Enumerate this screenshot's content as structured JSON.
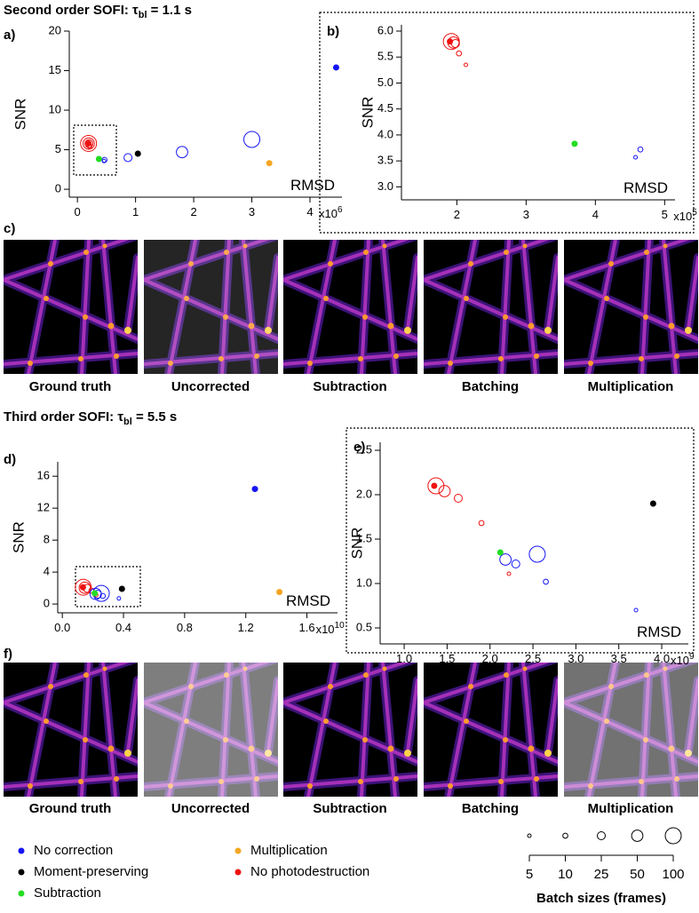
{
  "sections": [
    {
      "title_lead": "Second order SOFI: τ",
      "title_sub": "bl",
      "title_tail": " = 1.1 s",
      "image_panel_label": "c)",
      "images": [
        "Ground truth",
        "Uncorrected",
        "Subtraction",
        "Batching",
        "Multiplication"
      ]
    },
    {
      "title_lead": "Third order SOFI: τ",
      "title_sub": "bl",
      "title_tail": " = 5.5 s",
      "image_panel_label": "f)",
      "images": [
        "Ground truth",
        "Uncorrected",
        "Subtraction",
        "Batching",
        "Multiplication"
      ]
    }
  ],
  "chart_data": [
    {
      "type": "scatter",
      "panel_label": "a)",
      "y_label": "SNR",
      "x_label": "RMSD",
      "x_multiplier": {
        "base": "x10",
        "exponent": "6"
      },
      "xlim": [
        -140000,
        4550000
      ],
      "ylim": [
        -1,
        20
      ],
      "xticks": [
        0,
        {
          "value": 1000000,
          "label": "1"
        },
        {
          "value": 2000000,
          "label": "2"
        },
        {
          "value": 3000000,
          "label": "3"
        },
        {
          "value": 4000000,
          "label": "4"
        }
      ],
      "yticks": [
        0,
        5,
        10,
        15,
        20
      ],
      "series": [
        {
          "name": "No correction",
          "color": "#1515f5",
          "x": [
            4450000
          ],
          "values": [
            15.4
          ]
        },
        {
          "name": "Moment-preserving",
          "color": "#000000",
          "x": [
            1040000
          ],
          "values": [
            4.5
          ]
        },
        {
          "name": "Subtraction",
          "color": "#22dd22",
          "x": [
            370000
          ],
          "values": [
            3.83
          ]
        },
        {
          "name": "Multiplication",
          "color": "#f5a623",
          "x": [
            3300000
          ],
          "values": [
            3.3
          ]
        },
        {
          "name": "No photodestruction",
          "color": "#ee1111",
          "x": [
            190000
          ],
          "values": [
            5.8
          ]
        }
      ],
      "batch_series": [
        {
          "color": "#ee1111",
          "batch_sizes": [
            5,
            10,
            25,
            50,
            100
          ],
          "x": [
            213000,
            203000,
            198000,
            195000,
            192000
          ],
          "values": [
            5.35,
            5.57,
            5.76,
            5.78,
            5.8
          ]
        },
        {
          "color": "#1515f5",
          "batch_sizes": [
            5,
            10,
            25,
            50,
            100
          ],
          "x": [
            458000,
            465000,
            870000,
            1800000,
            3000000
          ],
          "values": [
            3.57,
            3.72,
            4.0,
            4.7,
            6.3
          ]
        }
      ]
    },
    {
      "type": "scatter",
      "panel_label": "b)",
      "y_label": "SNR",
      "x_label": "RMSD",
      "x_multiplier": {
        "base": "x10",
        "exponent": "5"
      },
      "xlim": [
        120000,
        515000
      ],
      "ylim": [
        2.75,
        6.12
      ],
      "xticks": [
        {
          "value": 200000,
          "label": "2"
        },
        {
          "value": 300000,
          "label": "3"
        },
        {
          "value": 400000,
          "label": "4"
        },
        {
          "value": 500000,
          "label": "5"
        }
      ],
      "yticks": [
        {
          "value": 3,
          "label": "3.0"
        },
        3.5,
        {
          "value": 4,
          "label": "4.0"
        },
        4.5,
        {
          "value": 5,
          "label": "5.0"
        },
        5.5,
        {
          "value": 6,
          "label": "6.0"
        }
      ],
      "series": [
        {
          "color": "#22dd22",
          "x": [
            370000
          ],
          "values": [
            3.83
          ]
        },
        {
          "color": "#ee1111",
          "x": [
            190000
          ],
          "values": [
            5.8
          ]
        }
      ],
      "batch_series": [
        {
          "color": "#ee1111",
          "batch_sizes": [
            5,
            10,
            25,
            50,
            100
          ],
          "x": [
            213000,
            203000,
            198000,
            195000,
            192000
          ],
          "values": [
            5.35,
            5.57,
            5.76,
            5.78,
            5.8
          ]
        },
        {
          "color": "#1515f5",
          "batch_sizes": [
            5,
            10
          ],
          "x": [
            458000,
            465000
          ],
          "values": [
            3.57,
            3.72
          ]
        }
      ]
    },
    {
      "type": "scatter",
      "panel_label": "d)",
      "y_label": "SNR",
      "x_label": "RMSD",
      "x_multiplier": {
        "base": "x10",
        "exponent": "10"
      },
      "xlim": [
        -300000000,
        18000000000
      ],
      "ylim": [
        -1.1,
        17.8
      ],
      "xticks": [
        {
          "value": 0,
          "label": "0.0"
        },
        {
          "value": 4000000000,
          "label": "0.4"
        },
        {
          "value": 8000000000,
          "label": "0.8"
        },
        {
          "value": 12000000000,
          "label": "1.2"
        },
        {
          "value": 16000000000,
          "label": "1.6"
        }
      ],
      "yticks": [
        0,
        4,
        8,
        12,
        16
      ],
      "series": [
        {
          "color": "#1515f5",
          "x": [
            12600000000
          ],
          "values": [
            14.4
          ]
        },
        {
          "color": "#000000",
          "x": [
            3900000000
          ],
          "values": [
            1.9
          ]
        },
        {
          "color": "#22dd22",
          "x": [
            2120000000
          ],
          "values": [
            1.35
          ]
        },
        {
          "color": "#f5a623",
          "x": [
            14200000000
          ],
          "values": [
            1.5
          ]
        },
        {
          "color": "#ee1111",
          "x": [
            1350000000
          ],
          "values": [
            2.1
          ]
        }
      ],
      "batch_series": [
        {
          "color": "#ee1111",
          "batch_sizes": [
            5,
            10,
            25,
            50,
            100
          ],
          "x": [
            2220000000,
            1900000000,
            1630000000,
            1470000000,
            1370000000
          ],
          "values": [
            1.11,
            1.68,
            1.96,
            2.04,
            2.1
          ]
        },
        {
          "color": "#1515f5",
          "batch_sizes": [
            5,
            10,
            25,
            50,
            100
          ],
          "x": [
            3700000000,
            2650000000,
            2300000000,
            2180000000,
            2550000000
          ],
          "values": [
            0.7,
            1.02,
            1.22,
            1.27,
            1.33
          ]
        }
      ]
    },
    {
      "type": "scatter",
      "panel_label": "e)",
      "y_label": "SNR",
      "x_label": "RMSD",
      "x_multiplier": {
        "base": "x10",
        "exponent": "9"
      },
      "xlim": [
        720000000,
        4310000000
      ],
      "ylim": [
        0.32,
        2.59
      ],
      "xticks": [
        {
          "value": 1000000000,
          "label": "1.0"
        },
        {
          "value": 1500000000,
          "label": "1.5"
        },
        {
          "value": 2000000000,
          "label": "2.0"
        },
        {
          "value": 2500000000,
          "label": "2.5"
        },
        {
          "value": 3000000000,
          "label": "3.0"
        },
        {
          "value": 3500000000,
          "label": "3.5"
        },
        {
          "value": 4000000000,
          "label": "4.0"
        }
      ],
      "yticks": [
        0.5,
        {
          "value": 1,
          "label": "1.0"
        },
        1.5,
        {
          "value": 2,
          "label": "2.0"
        },
        2.5
      ],
      "series": [
        {
          "color": "#000000",
          "x": [
            3900000000
          ],
          "values": [
            1.9
          ]
        },
        {
          "color": "#22dd22",
          "x": [
            2120000000
          ],
          "values": [
            1.35
          ]
        },
        {
          "color": "#ee1111",
          "x": [
            1350000000
          ],
          "values": [
            2.1
          ]
        }
      ],
      "batch_series": [
        {
          "color": "#ee1111",
          "batch_sizes": [
            5,
            10,
            25,
            50,
            100
          ],
          "x": [
            2220000000,
            1900000000,
            1630000000,
            1470000000,
            1370000000
          ],
          "values": [
            1.11,
            1.68,
            1.96,
            2.04,
            2.1
          ]
        },
        {
          "color": "#1515f5",
          "batch_sizes": [
            5,
            10,
            25,
            50,
            100
          ],
          "x": [
            3700000000,
            2650000000,
            2300000000,
            2180000000,
            2550000000
          ],
          "values": [
            0.7,
            1.02,
            1.22,
            1.27,
            1.33
          ]
        }
      ]
    }
  ],
  "batch_size_legend": {
    "title": "Batch sizes (frames)",
    "sizes": [
      5,
      10,
      25,
      50,
      100
    ]
  }
}
